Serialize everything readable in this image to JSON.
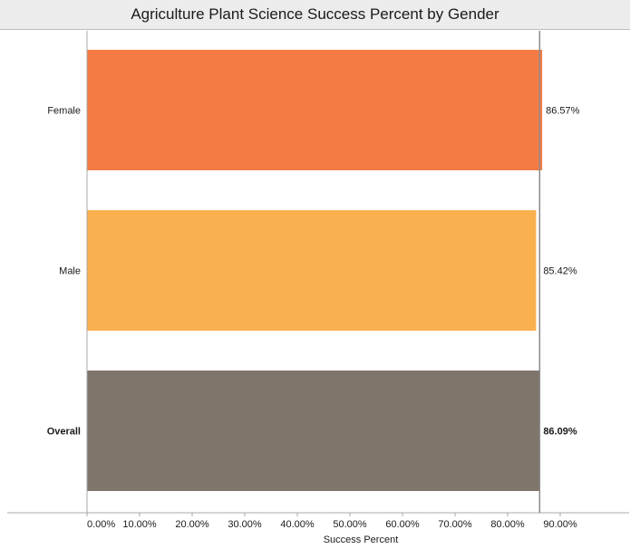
{
  "chart_data": {
    "type": "bar",
    "orientation": "horizontal",
    "title": "Agriculture Plant Science Success Percent by Gender",
    "xlabel": "Success Percent",
    "ylabel": "",
    "xlim": [
      0,
      90
    ],
    "ticks": [
      "0.00%",
      "10.00%",
      "20.00%",
      "30.00%",
      "40.00%",
      "50.00%",
      "60.00%",
      "70.00%",
      "80.00%",
      "90.00%"
    ],
    "reference_line_value": 86.09,
    "categories": [
      "Female",
      "Male",
      "Overall"
    ],
    "values": [
      86.57,
      85.42,
      86.09
    ],
    "value_labels": [
      "86.57%",
      "85.42%",
      "86.09%"
    ],
    "bold": [
      false,
      false,
      true
    ],
    "colors": [
      "#f47b44",
      "#f9b04f",
      "#7e756b"
    ],
    "grid": false
  }
}
